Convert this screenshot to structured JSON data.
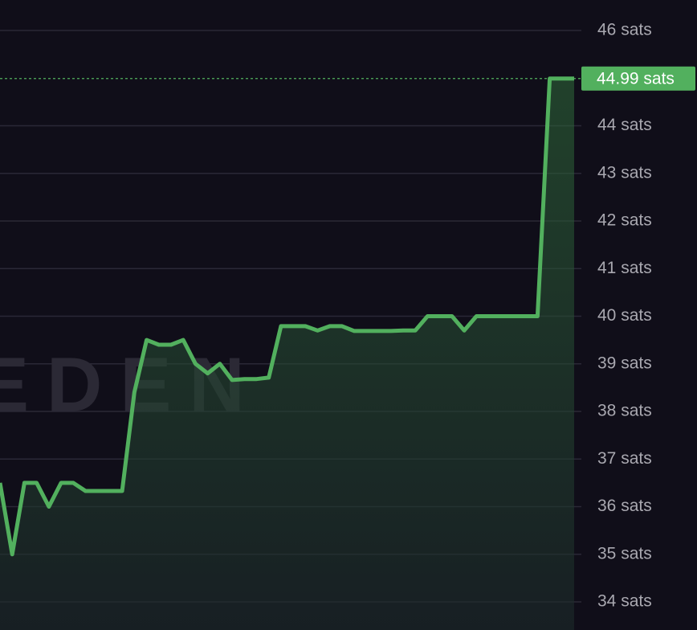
{
  "chart_data": {
    "type": "line",
    "watermark": "EDEN",
    "series": [
      {
        "color": "#52b05e",
        "values": [
          36.5,
          35.0,
          36.5,
          36.5,
          36.0,
          36.5,
          36.5,
          36.33,
          36.33,
          36.33,
          36.33,
          38.4,
          39.5,
          39.4,
          39.4,
          39.5,
          39.0,
          38.8,
          39.0,
          38.66,
          38.68,
          38.68,
          38.71,
          39.79,
          39.79,
          39.79,
          39.7,
          39.79,
          39.79,
          39.69,
          39.69,
          39.69,
          39.69,
          39.7,
          39.7,
          40.0,
          40.0,
          40.0,
          39.7,
          40.0,
          40.0,
          40.0,
          40.0,
          40.0,
          40.0,
          44.99,
          44.99,
          44.99
        ]
      }
    ],
    "ylim": [
      33.41,
      46.64
    ],
    "yticks": [
      {
        "value": 34,
        "label": "34 sats"
      },
      {
        "value": 35,
        "label": "35 sats"
      },
      {
        "value": 36,
        "label": "36 sats"
      },
      {
        "value": 37,
        "label": "37 sats"
      },
      {
        "value": 38,
        "label": "38 sats"
      },
      {
        "value": 39,
        "label": "39 sats"
      },
      {
        "value": 40,
        "label": "40 sats"
      },
      {
        "value": 41,
        "label": "41 sats"
      },
      {
        "value": 42,
        "label": "42 sats"
      },
      {
        "value": 43,
        "label": "43 sats"
      },
      {
        "value": 44,
        "label": "44 sats"
      },
      {
        "value": 46,
        "label": "46 sats"
      }
    ],
    "last_price": {
      "value": 44.99,
      "label": "44.99 sats",
      "color": "#52b05e"
    },
    "grid": true
  }
}
